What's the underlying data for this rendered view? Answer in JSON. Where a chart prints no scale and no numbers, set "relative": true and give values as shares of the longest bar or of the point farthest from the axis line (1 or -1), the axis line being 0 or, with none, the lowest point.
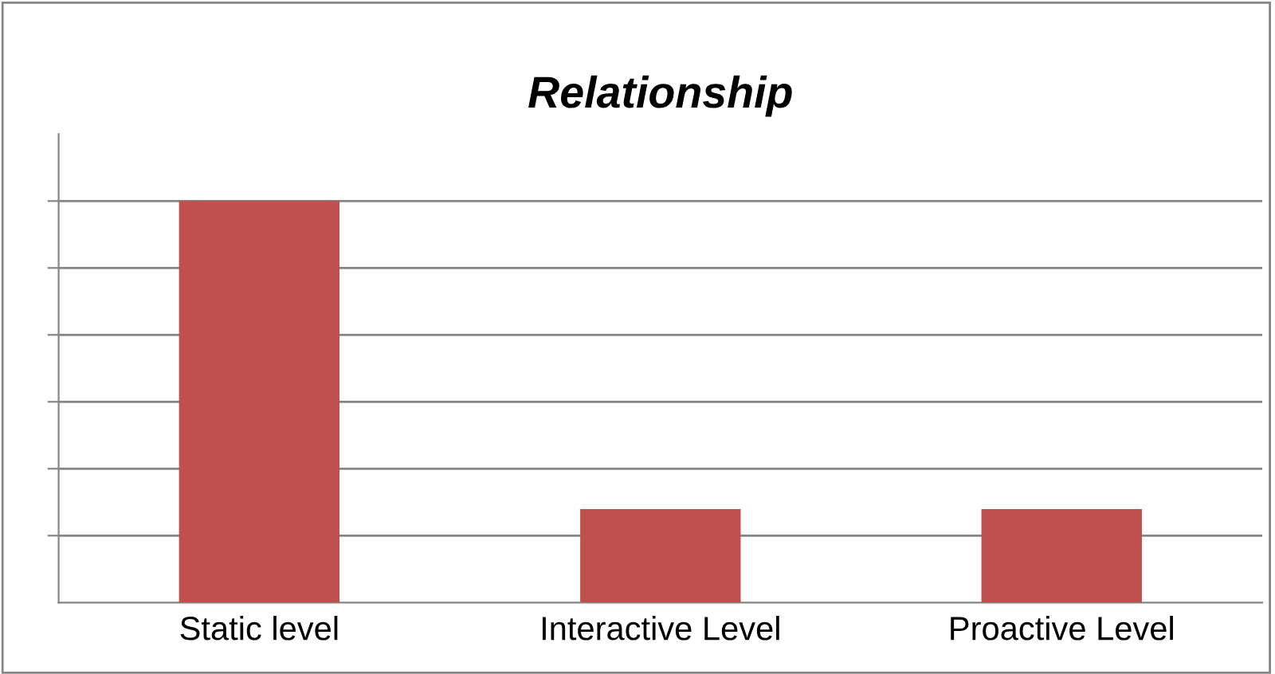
{
  "chart_data": {
    "type": "bar",
    "title": "Relationship",
    "categories": [
      "Static level",
      "Interactive Level",
      "Proactive Level"
    ],
    "values": [
      1,
      0.233,
      0.233
    ],
    "color": "#c0504d",
    "relative": true,
    "grid": "y"
  }
}
